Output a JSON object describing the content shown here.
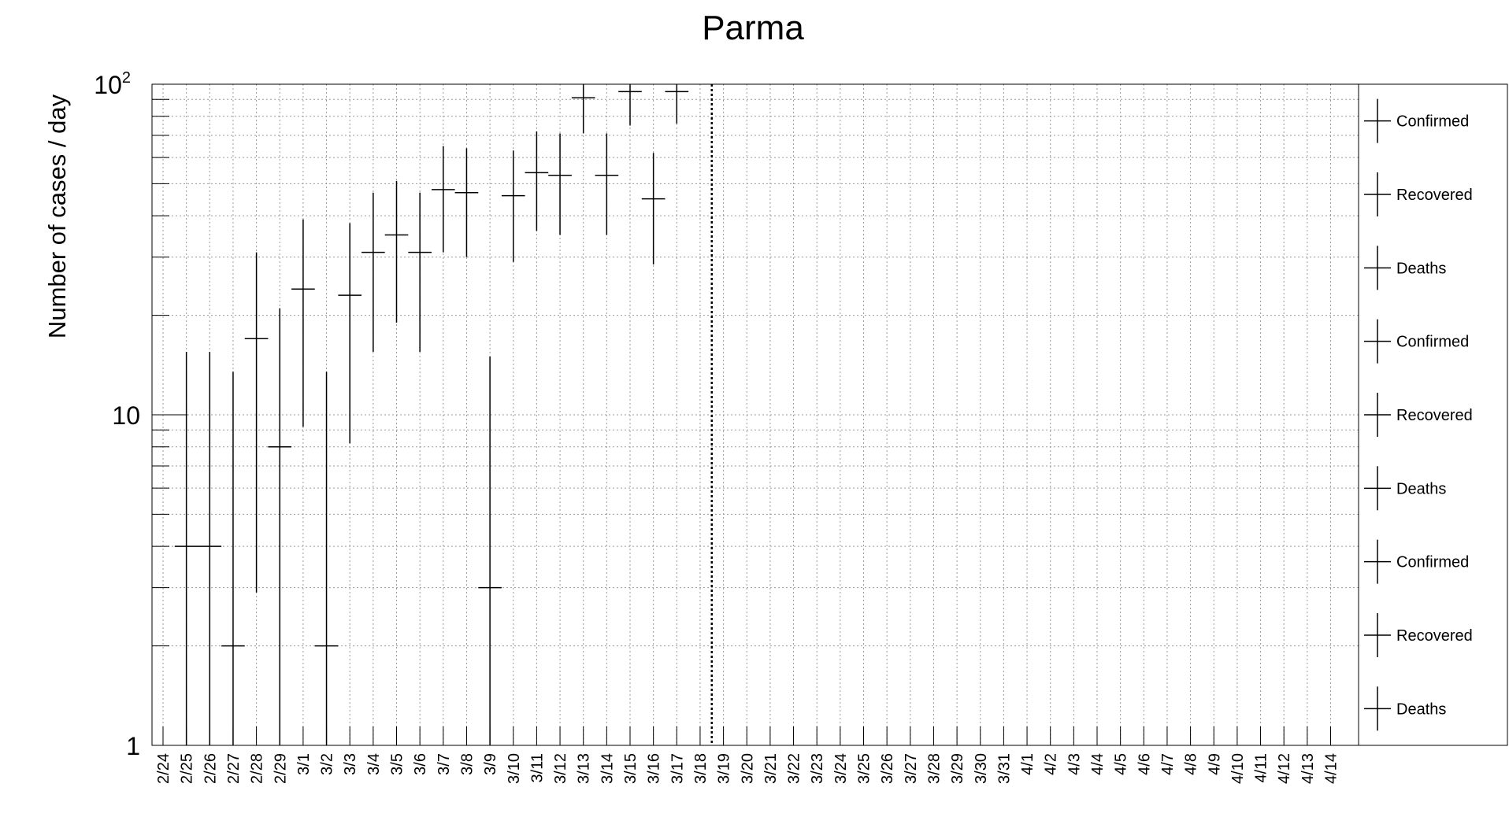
{
  "chart_data": {
    "type": "scatter",
    "title": "Parma",
    "ylabel": "Number of cases / day",
    "xlabel": "",
    "y_scale": "log",
    "ylim": [
      1,
      100
    ],
    "grid": true,
    "legend_position": "right",
    "y_ticks": [
      {
        "value": 1,
        "base": "1",
        "exp": ""
      },
      {
        "value": 10,
        "base": "10",
        "exp": ""
      },
      {
        "value": 100,
        "base": "10",
        "exp": "2"
      }
    ],
    "categories": [
      "2/24",
      "2/25",
      "2/26",
      "2/27",
      "2/28",
      "2/29",
      "3/1",
      "3/2",
      "3/3",
      "3/4",
      "3/5",
      "3/6",
      "3/7",
      "3/8",
      "3/9",
      "3/10",
      "3/11",
      "3/12",
      "3/13",
      "3/14",
      "3/15",
      "3/16",
      "3/17",
      "3/18",
      "3/19",
      "3/20",
      "3/21",
      "3/22",
      "3/23",
      "3/24",
      "3/25",
      "3/26",
      "3/27",
      "3/28",
      "3/29",
      "3/30",
      "3/31",
      "4/1",
      "4/2",
      "4/3",
      "4/4",
      "4/5",
      "4/6",
      "4/7",
      "4/8",
      "4/9",
      "4/10",
      "4/11",
      "4/12",
      "4/13",
      "4/14"
    ],
    "series": [
      {
        "name": "Confirmed",
        "color": "#000000",
        "points": [
          {
            "x": "2/25",
            "y": 4,
            "ylow": 1,
            "yhigh": 15.5
          },
          {
            "x": "2/26",
            "y": 4,
            "ylow": 1,
            "yhigh": 15.5
          },
          {
            "x": "2/27",
            "y": 2,
            "ylow": 1,
            "yhigh": 13.5
          },
          {
            "x": "2/28",
            "y": 17,
            "ylow": 2.9,
            "yhigh": 31
          },
          {
            "x": "2/29",
            "y": 8,
            "ylow": 1,
            "yhigh": 21
          },
          {
            "x": "3/1",
            "y": 24,
            "ylow": 9.2,
            "yhigh": 39
          },
          {
            "x": "3/2",
            "y": 2,
            "ylow": 1,
            "yhigh": 13.5
          },
          {
            "x": "3/3",
            "y": 23,
            "ylow": 8.2,
            "yhigh": 38
          },
          {
            "x": "3/4",
            "y": 31,
            "ylow": 15.5,
            "yhigh": 47
          },
          {
            "x": "3/5",
            "y": 35,
            "ylow": 19,
            "yhigh": 51
          },
          {
            "x": "3/6",
            "y": 31,
            "ylow": 15.5,
            "yhigh": 47
          },
          {
            "x": "3/7",
            "y": 48,
            "ylow": 31,
            "yhigh": 65
          },
          {
            "x": "3/8",
            "y": 47,
            "ylow": 30,
            "yhigh": 64
          },
          {
            "x": "3/9",
            "y": 3,
            "ylow": 1,
            "yhigh": 15
          },
          {
            "x": "3/10",
            "y": 46,
            "ylow": 29,
            "yhigh": 63
          },
          {
            "x": "3/11",
            "y": 54,
            "ylow": 36,
            "yhigh": 72
          },
          {
            "x": "3/12",
            "y": 53,
            "ylow": 35,
            "yhigh": 71
          },
          {
            "x": "3/13",
            "y": 91,
            "ylow": 71,
            "yhigh": 100
          },
          {
            "x": "3/14",
            "y": 53,
            "ylow": 35,
            "yhigh": 71
          },
          {
            "x": "3/15",
            "y": 95,
            "ylow": 75,
            "yhigh": 100
          },
          {
            "x": "3/16",
            "y": 45,
            "ylow": 28.5,
            "yhigh": 62
          },
          {
            "x": "3/17",
            "y": 95,
            "ylow": 76,
            "yhigh": 100
          }
        ]
      }
    ],
    "vertical_marker": {
      "x_between": [
        "3/18",
        "3/19"
      ],
      "style": "dotted"
    },
    "legend": [
      "Confirmed",
      "Recovered",
      "Deaths",
      "Confirmed",
      "Recovered",
      "Deaths",
      "Confirmed",
      "Recovered",
      "Deaths"
    ]
  }
}
